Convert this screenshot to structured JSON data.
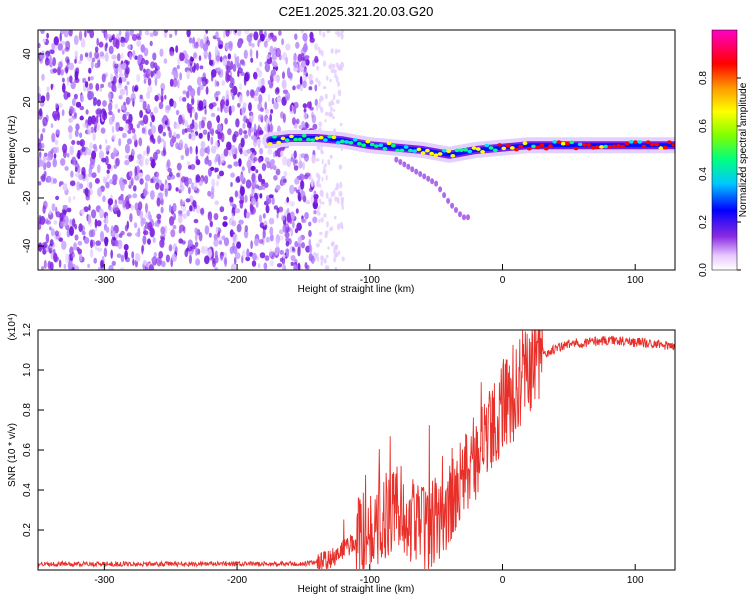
{
  "title": "C2E1.2025.321.20.03.G20",
  "chart_data": [
    {
      "type": "heatmap",
      "name": "spectrogram",
      "xlabel": "Height of straight line (km)",
      "ylabel": "Frequency (Hz)",
      "xlim": [
        -350,
        130
      ],
      "ylim": [
        -50,
        50
      ],
      "xticks": [
        -300,
        -200,
        -100,
        0,
        100
      ],
      "yticks": [
        -40,
        -20,
        0,
        20,
        40
      ],
      "noise_region_x": [
        -350,
        -140
      ],
      "sparse_noise_x": [
        -140,
        -120
      ],
      "signal_trace": [
        {
          "x": -175,
          "y": 4
        },
        {
          "x": -160,
          "y": 5
        },
        {
          "x": -140,
          "y": 5
        },
        {
          "x": -120,
          "y": 4
        },
        {
          "x": -100,
          "y": 2
        },
        {
          "x": -80,
          "y": 1
        },
        {
          "x": -60,
          "y": 0
        },
        {
          "x": -40,
          "y": -2
        },
        {
          "x": -20,
          "y": 0
        },
        {
          "x": 0,
          "y": 1
        },
        {
          "x": 20,
          "y": 2
        },
        {
          "x": 40,
          "y": 2
        },
        {
          "x": 80,
          "y": 2
        },
        {
          "x": 130,
          "y": 2
        }
      ],
      "colorbar": {
        "label": "Normalized spectral amplitude",
        "ticks": [
          0.0,
          0.2,
          0.4,
          0.6,
          0.8
        ],
        "range": [
          0,
          1
        ]
      }
    },
    {
      "type": "line",
      "name": "snr",
      "xlabel": "Height of straight line (km)",
      "ylabel": "SNR (10 * v/v)",
      "scale_label": "(x10⁴)",
      "xlim": [
        -350,
        130
      ],
      "ylim": [
        0,
        1.2
      ],
      "xticks": [
        -300,
        -200,
        -100,
        0,
        100
      ],
      "yticks": [
        0.2,
        0.4,
        0.6,
        0.8,
        1.0,
        1.2
      ],
      "color": "#e8302a",
      "envelope": [
        {
          "x": -350,
          "y": 0.03
        },
        {
          "x": -150,
          "y": 0.03
        },
        {
          "x": -130,
          "y": 0.05
        },
        {
          "x": -120,
          "y": 0.1
        },
        {
          "x": -110,
          "y": 0.15
        },
        {
          "x": -100,
          "y": 0.2
        },
        {
          "x": -90,
          "y": 0.25
        },
        {
          "x": -80,
          "y": 0.35
        },
        {
          "x": -70,
          "y": 0.25
        },
        {
          "x": -60,
          "y": 0.2
        },
        {
          "x": -50,
          "y": 0.25
        },
        {
          "x": -40,
          "y": 0.3
        },
        {
          "x": -30,
          "y": 0.45
        },
        {
          "x": -20,
          "y": 0.55
        },
        {
          "x": -10,
          "y": 0.7
        },
        {
          "x": 0,
          "y": 0.8
        },
        {
          "x": 10,
          "y": 0.9
        },
        {
          "x": 20,
          "y": 1.0
        },
        {
          "x": 30,
          "y": 1.08
        },
        {
          "x": 50,
          "y": 1.13
        },
        {
          "x": 80,
          "y": 1.15
        },
        {
          "x": 100,
          "y": 1.14
        },
        {
          "x": 130,
          "y": 1.12
        }
      ]
    }
  ]
}
